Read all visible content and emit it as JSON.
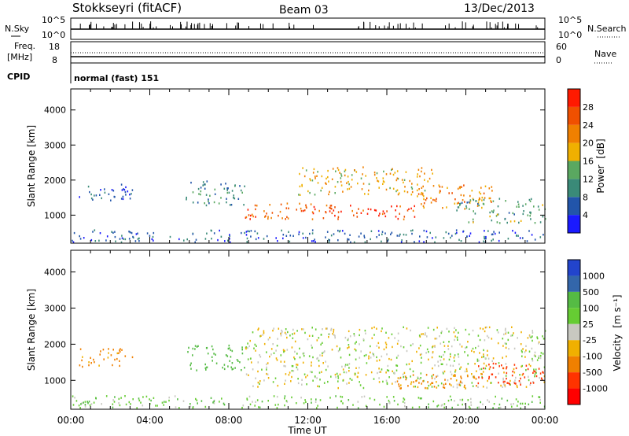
{
  "header": {
    "title": "Stokkseyri (fitACF)",
    "beam": "Beam 03",
    "date": "13/Dec/2013"
  },
  "nsky_panel": {
    "label": "N.Sky",
    "right_label": "N.Search",
    "left_ticks": [
      "10^5",
      "10^0"
    ],
    "right_ticks": [
      "10^5",
      "10^0"
    ]
  },
  "freq_panel": {
    "label_top": "Freq.",
    "label_unit": "[MHz]",
    "left_ticks": [
      "18",
      "8"
    ],
    "right_ticks": [
      "60",
      "0"
    ],
    "right_label": "Nave",
    "cpid_label": "CPID",
    "cpid_text": "normal (fast) 151"
  },
  "colors": {
    "power_scale": [
      "#1a1aff",
      "#2255aa",
      "#3a8a78",
      "#5aa860",
      "#f0b000",
      "#f08000",
      "#f05000",
      "#ff1a00"
    ],
    "velocity_scale": [
      "#2244cc",
      "#3366aa",
      "#55bb44",
      "#66cc33",
      "#c8c8c0",
      "#f0b000",
      "#f08000",
      "#ff3300",
      "#ff0000"
    ],
    "ground_scatter": "#c8c8c0"
  },
  "chart_data": [
    {
      "type": "heatmap",
      "title": "Power",
      "quantity": "Power",
      "unit": "[dB]",
      "ylabel": "Slant Range [km]",
      "xlabel": "Time UT",
      "x_ticks": [
        "00:00",
        "04:00",
        "08:00",
        "12:00",
        "16:00",
        "20:00",
        "00:00"
      ],
      "x_range_hours": [
        0,
        24
      ],
      "y_ticks": [
        1000,
        2000,
        3000,
        4000
      ],
      "ylim": [
        200,
        4600
      ],
      "colorbar_ticks": [
        4,
        8,
        12,
        16,
        20,
        24,
        28
      ],
      "colorbar_range": [
        0,
        32
      ],
      "regions": [
        {
          "t": [
            0.4,
            3.1
          ],
          "r": [
            1400,
            1900
          ],
          "value": 6
        },
        {
          "t": [
            5.8,
            8.8
          ],
          "r": [
            1300,
            2000
          ],
          "value": 9
        },
        {
          "t": [
            8.8,
            13.2
          ],
          "r": [
            900,
            1400
          ],
          "value": 25
        },
        {
          "t": [
            11.5,
            18.3
          ],
          "r": [
            1600,
            2400
          ],
          "value": 19
        },
        {
          "t": [
            13.0,
            17.5
          ],
          "r": [
            900,
            1300
          ],
          "value": 28
        },
        {
          "t": [
            17.5,
            21.5
          ],
          "r": [
            1200,
            1900
          ],
          "value": 22
        },
        {
          "t": [
            19.5,
            24.0
          ],
          "r": [
            800,
            1500
          ],
          "value": 12
        },
        {
          "t": [
            0.0,
            24.0
          ],
          "r": [
            250,
            600
          ],
          "value": 7
        }
      ]
    },
    {
      "type": "heatmap",
      "title": "Velocity",
      "quantity": "Velocity",
      "unit": "[m s⁻¹]",
      "ylabel": "Slant Range [km]",
      "xlabel": "Time UT",
      "x_ticks": [
        "00:00",
        "04:00",
        "08:00",
        "12:00",
        "16:00",
        "20:00",
        "00:00"
      ],
      "x_range_hours": [
        0,
        24
      ],
      "y_ticks": [
        1000,
        2000,
        3000,
        4000
      ],
      "ylim": [
        200,
        4600
      ],
      "colorbar_ticks": [
        1000,
        500,
        100,
        25,
        -25,
        -100,
        -500,
        -1000
      ],
      "regions": [
        {
          "t": [
            0.4,
            3.1
          ],
          "r": [
            1400,
            1900
          ],
          "value": -150
        },
        {
          "t": [
            5.8,
            8.8
          ],
          "r": [
            1300,
            2000
          ],
          "value": 200
        },
        {
          "t": [
            8.8,
            24.0
          ],
          "r": [
            800,
            2500
          ],
          "value": 0
        },
        {
          "t": [
            16.5,
            21.0
          ],
          "r": [
            800,
            1200
          ],
          "value": -200
        },
        {
          "t": [
            20.5,
            24.0
          ],
          "r": [
            900,
            1500
          ],
          "value": -700
        },
        {
          "t": [
            0.0,
            24.0
          ],
          "r": [
            250,
            600
          ],
          "value": 60
        }
      ]
    }
  ]
}
